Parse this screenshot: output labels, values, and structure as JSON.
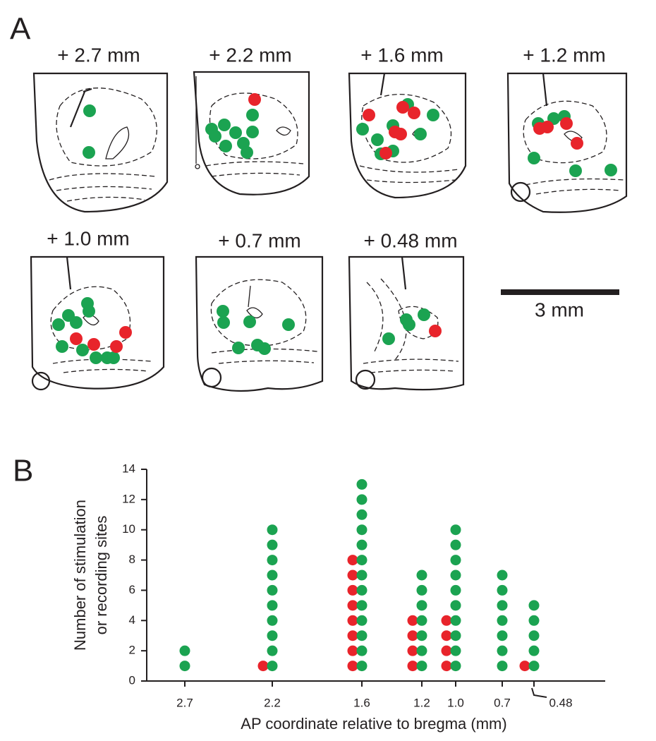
{
  "panel_a": {
    "label": "A",
    "sections": [
      "+ 2.7 mm",
      "+ 2.2 mm",
      "+ 1.6 mm",
      "+ 1.2 mm",
      "+ 1.0 mm",
      "+ 0.7 mm",
      "+ 0.48 mm"
    ],
    "scale_bar": "3 mm"
  },
  "chart_data": {
    "type": "dot",
    "panel_label": "B",
    "xlabel": "AP coordinate relative to bregma (mm)",
    "ylabel": [
      "Number of stimulation",
      "or recording sites"
    ],
    "categories": [
      "2.7",
      "2.2",
      "1.6",
      "1.2",
      "1.0",
      "0.7",
      "0.48"
    ],
    "series": [
      {
        "color": "#e8242b",
        "values": [
          0,
          1,
          8,
          4,
          4,
          0,
          1
        ]
      },
      {
        "color": "#1ba351",
        "values": [
          2,
          10,
          13,
          7,
          10,
          7,
          5
        ]
      }
    ],
    "ylim": [
      0,
      14
    ],
    "yticks": [
      0,
      2,
      4,
      6,
      8,
      10,
      12,
      14
    ]
  }
}
